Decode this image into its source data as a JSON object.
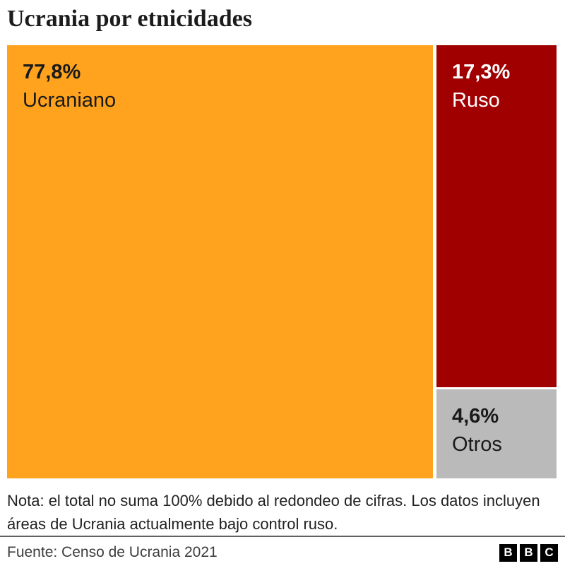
{
  "header": {
    "title": "Ucrania por etnicidades"
  },
  "chart_data": {
    "type": "treemap",
    "title": "Ucrania por etnicidades",
    "categories": [
      "Ucraniano",
      "Ruso",
      "Otros"
    ],
    "values": [
      77.8,
      17.3,
      4.6
    ],
    "unit": "%",
    "tiles": [
      {
        "label": "Ucraniano",
        "value": 77.8,
        "value_label": "77,8%",
        "color": "#FFA31E",
        "text_color": "#1a1a1a"
      },
      {
        "label": "Ruso",
        "value": 17.3,
        "value_label": "17,3%",
        "color": "#A10000",
        "text_color": "#ffffff"
      },
      {
        "label": "Otros",
        "value": 4.6,
        "value_label": "4,6%",
        "color": "#BABABA",
        "text_color": "#1a1a1a"
      }
    ],
    "note": "Nota: el total no suma 100% debido al redondeo de cifras. Los datos incluyen áreas de Ucrania actualmente bajo control ruso.",
    "source": "Fuente: Censo de Ucrania 2021",
    "legend": "none",
    "grid": false
  },
  "footer": {
    "source": "Fuente: Censo de Ucrania 2021",
    "logo_letters": [
      "B",
      "B",
      "C"
    ]
  }
}
